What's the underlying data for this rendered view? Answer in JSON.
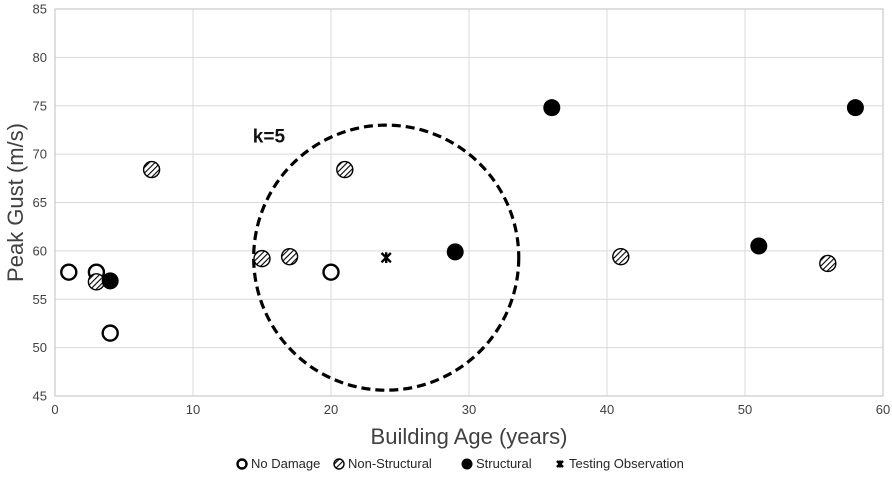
{
  "chart_data": {
    "type": "scatter",
    "xlabel": "Building Age (years)",
    "ylabel": "Peak Gust (m/s)",
    "xlim": [
      0,
      60
    ],
    "ylim": [
      45,
      85
    ],
    "x_ticks": [
      "0",
      "10",
      "20",
      "30",
      "40",
      "50",
      "60"
    ],
    "y_ticks": [
      "45",
      "50",
      "55",
      "60",
      "65",
      "70",
      "75",
      "80",
      "85"
    ],
    "grid": true,
    "legend_position": "bottom",
    "series": [
      {
        "name": "No Damage",
        "marker": "hollow-circle",
        "points": [
          {
            "x": 1,
            "y": 57.8
          },
          {
            "x": 3,
            "y": 57.8
          },
          {
            "x": 4,
            "y": 51.5
          },
          {
            "x": 20,
            "y": 57.8
          }
        ]
      },
      {
        "name": "Non-Structural",
        "marker": "hatched-circle",
        "points": [
          {
            "x": 3,
            "y": 56.8
          },
          {
            "x": 7,
            "y": 68.4
          },
          {
            "x": 15,
            "y": 59.2
          },
          {
            "x": 17,
            "y": 59.4
          },
          {
            "x": 21,
            "y": 68.4
          },
          {
            "x": 41,
            "y": 59.4
          },
          {
            "x": 56,
            "y": 58.7
          }
        ]
      },
      {
        "name": "Structural",
        "marker": "filled-circle",
        "points": [
          {
            "x": 4,
            "y": 56.9
          },
          {
            "x": 29,
            "y": 59.9
          },
          {
            "x": 36,
            "y": 74.8
          },
          {
            "x": 51,
            "y": 60.5
          },
          {
            "x": 58,
            "y": 74.8
          }
        ]
      },
      {
        "name": "Testing Observation",
        "marker": "star",
        "points": [
          {
            "x": 24,
            "y": 59.3
          }
        ]
      }
    ],
    "annotations": [
      {
        "text": "k=5",
        "x": 15.5,
        "y": 71.2
      }
    ],
    "neighborhood_circle": {
      "center_x": 24,
      "y_min": 45.6,
      "y_max": 73.0,
      "style": "dashed"
    },
    "colors": {
      "marker": "#000000",
      "grid": "#d9d9d9",
      "axis": "#404040"
    }
  }
}
